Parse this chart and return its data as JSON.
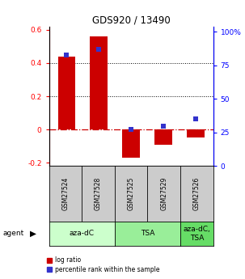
{
  "title": "GDS920 / 13490",
  "samples": [
    "GSM27524",
    "GSM27528",
    "GSM27525",
    "GSM27529",
    "GSM27526"
  ],
  "log_ratios": [
    0.44,
    0.56,
    -0.17,
    -0.09,
    -0.05
  ],
  "percentile_ranks": [
    83,
    87,
    27,
    30,
    35
  ],
  "bar_color": "#cc0000",
  "point_color": "#3333cc",
  "ylim_left": [
    -0.22,
    0.62
  ],
  "ylim_right": [
    0,
    104
  ],
  "yticks_left": [
    -0.2,
    0.0,
    0.2,
    0.4,
    0.6
  ],
  "ytick_labels_left": [
    "-0.2",
    "0",
    "0.2",
    "0.4",
    "0.6"
  ],
  "yticks_right": [
    0,
    25,
    50,
    75,
    100
  ],
  "ytick_labels_right": [
    "0",
    "25",
    "50",
    "75",
    "100%"
  ],
  "groups": [
    {
      "label": "aza-dC",
      "color": "#ccffcc",
      "start": 0,
      "end": 1
    },
    {
      "label": "TSA",
      "color": "#99ee99",
      "start": 2,
      "end": 3
    },
    {
      "label": "aza-dC,\nTSA",
      "color": "#66dd66",
      "start": 4,
      "end": 4
    }
  ],
  "legend_items": [
    {
      "label": "log ratio",
      "color": "#cc0000"
    },
    {
      "label": "percentile rank within the sample",
      "color": "#3333cc"
    }
  ],
  "zero_line_color": "#cc0000",
  "sample_box_color": "#cccccc",
  "bar_width": 0.55
}
